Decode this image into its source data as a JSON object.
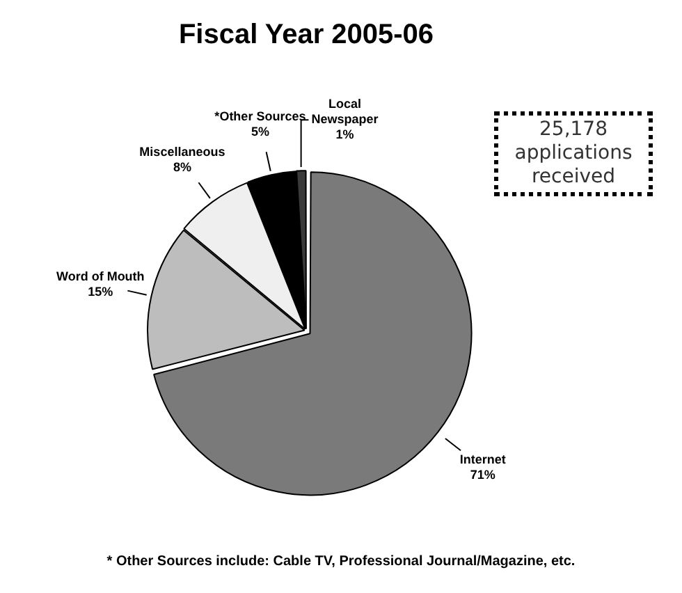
{
  "chart_data": {
    "type": "pie",
    "title": "Fiscal Year 2005-06",
    "categories": [
      "Internet",
      "Word of Mouth",
      "Miscellaneous",
      "*Other Sources",
      "Local Newspaper"
    ],
    "values": [
      71,
      15,
      8,
      5,
      1
    ],
    "colors": [
      "#7a7a7a",
      "#bdbdbd",
      "#efefef",
      "#000000",
      "#3a3a3a"
    ],
    "value_labels": [
      "71%",
      "15%",
      "8%",
      "5%",
      "1%"
    ],
    "legend": false,
    "annotations": [
      "25,178 applications received",
      "* Other Sources include: Cable TV, Professional Journal/Magazine, etc."
    ]
  }
}
